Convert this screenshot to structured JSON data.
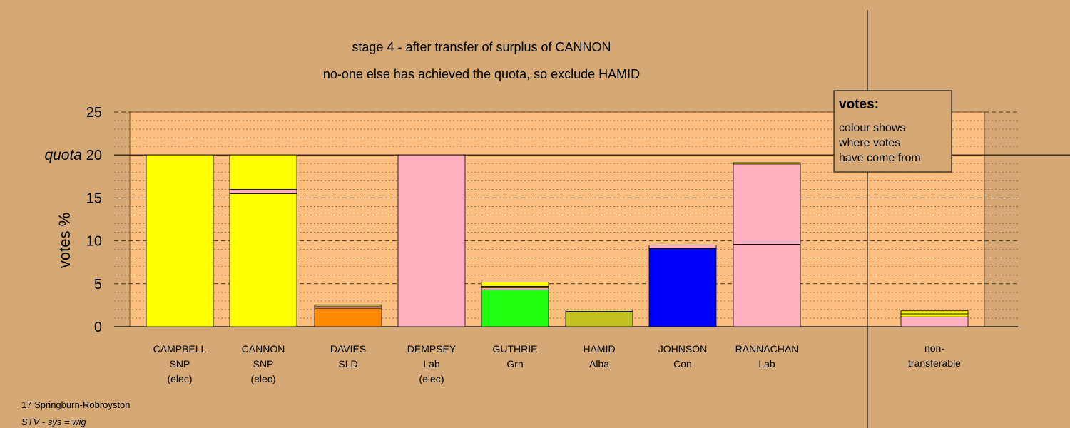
{
  "chart_data": {
    "type": "bar",
    "stacked": true,
    "title": "stage 4 - after transfer of surplus of CANNON",
    "subtitle": "no-one else has achieved the quota, so exclude HAMID",
    "ylabel": "votes %",
    "ylim": [
      0,
      25
    ],
    "yticks": [
      0,
      5,
      10,
      15,
      20,
      25
    ],
    "yticklabels": [
      "0",
      "5",
      "10",
      "15",
      "quota 20",
      "25"
    ],
    "quota_label": "quota",
    "quota": 20,
    "grid": true,
    "candidates": [
      {
        "name": "CAMPBELL",
        "party": "SNP",
        "status": "(elec)",
        "segments": [
          {
            "value": 20.0,
            "color": "#ffff00"
          }
        ]
      },
      {
        "name": "CANNON",
        "party": "SNP",
        "status": "(elec)",
        "segments": [
          {
            "value": 15.5,
            "color": "#ffff00"
          },
          {
            "value": 0.5,
            "color": "#ffb0c0"
          },
          {
            "value": 4.0,
            "color": "#ffff00"
          }
        ]
      },
      {
        "name": "DAVIES",
        "party": "SLD",
        "status": "",
        "segments": [
          {
            "value": 2.15,
            "color": "#ff8c00"
          },
          {
            "value": 0.25,
            "color": "#ffb0c0"
          },
          {
            "value": 0.15,
            "color": "#ffff00"
          }
        ]
      },
      {
        "name": "DEMPSEY",
        "party": "Lab",
        "status": "(elec)",
        "segments": [
          {
            "value": 20.0,
            "color": "#ffb0c0"
          }
        ]
      },
      {
        "name": "GUTHRIE",
        "party": "Grn",
        "status": "",
        "segments": [
          {
            "value": 4.3,
            "color": "#22ff11"
          },
          {
            "value": 0.25,
            "color": "#ffb0c0"
          },
          {
            "value": 0.15,
            "color": "#ffff00"
          },
          {
            "value": 0.5,
            "color": "#ffff00"
          }
        ]
      },
      {
        "name": "HAMID",
        "party": "Alba",
        "status": "",
        "segments": [
          {
            "value": 1.7,
            "color": "#c0c020"
          },
          {
            "value": 0.1,
            "color": "#ffb0c0"
          },
          {
            "value": 0.15,
            "color": "#ffff00"
          }
        ]
      },
      {
        "name": "JOHNSON",
        "party": "Con",
        "status": "",
        "segments": [
          {
            "value": 9.1,
            "color": "#0000ff"
          },
          {
            "value": 0.4,
            "color": "#ffb0c0"
          }
        ]
      },
      {
        "name": "RANNACHAN",
        "party": "Lab",
        "status": "",
        "segments": [
          {
            "value": 9.6,
            "color": "#ffb0c0"
          },
          {
            "value": 9.35,
            "color": "#ffb0c0"
          },
          {
            "value": 0.15,
            "color": "#ffff00"
          }
        ]
      }
    ],
    "nontransferable": {
      "label_line1": "non-",
      "label_line2": "transferable",
      "segments": [
        {
          "value": 1.15,
          "color": "#ffb0c0"
        },
        {
          "value": 0.35,
          "color": "#ffff00"
        },
        {
          "value": 0.35,
          "color": "#ffff00"
        }
      ]
    },
    "legend": {
      "title": "votes:",
      "line1": "colour shows",
      "line2": "where votes",
      "line3": "have come from",
      "placement": "top-right"
    }
  },
  "footer": {
    "ward": "17 Springburn-Robroyston",
    "system": "STV - sys = wig"
  },
  "colors": {
    "background": "#d4a976",
    "plot_area": "#fdbf80",
    "border": "#000000"
  }
}
